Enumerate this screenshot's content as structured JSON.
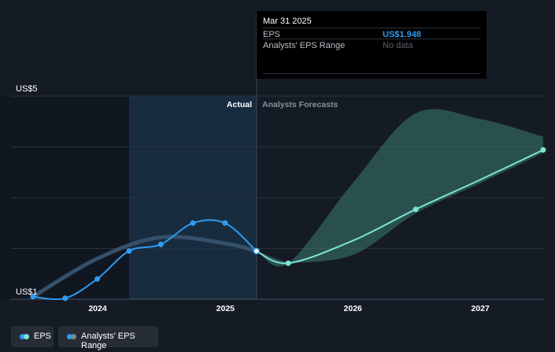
{
  "tooltip": {
    "title": "Mar 31 2025",
    "rows": [
      {
        "label": "EPS",
        "value": "US$1.948"
      },
      {
        "label": "Analysts' EPS Range",
        "value": "No data"
      }
    ]
  },
  "legend": [
    {
      "label": "EPS",
      "color": "#2f9bf2",
      "color2": "#7de4d6"
    },
    {
      "label": "Analysts' EPS Range",
      "color": "#2f9bf2",
      "color2": "#6e8c8c"
    }
  ],
  "chart_data": {
    "type": "line",
    "y_axis_labels": [
      "US$5",
      "US$1"
    ],
    "ylim": [
      1,
      5
    ],
    "x_ticks": [
      "2024",
      "2025",
      "2026",
      "2027"
    ],
    "section_labels": {
      "actual": "Actual",
      "forecast": "Analysts Forecasts"
    },
    "grid": true,
    "colors": {
      "actual": "#2f9bf2",
      "forecast": "#7de4d6",
      "range": "#3d7c70",
      "past_band": "#1b3a57"
    },
    "series": [
      {
        "name": "EPS",
        "x": [
          "2023-06-30",
          "2023-09-30",
          "2023-12-31",
          "2024-03-31",
          "2024-06-30",
          "2024-09-30",
          "2024-12-31",
          "2025-03-31"
        ],
        "values": [
          1.05,
          1.02,
          1.4,
          1.95,
          2.08,
          2.5,
          2.5,
          1.948
        ]
      },
      {
        "name": "EPS Forecast",
        "x": [
          "2025-03-31",
          "2025-06-30",
          "2025-12-31",
          "2026-06-30",
          "2026-12-31",
          "2027-06-30"
        ],
        "values": [
          1.948,
          1.71,
          2.15,
          2.77,
          3.35,
          3.94
        ]
      },
      {
        "name": "Analysts' EPS Range",
        "x": [
          "2023-06-30",
          "2023-12-31",
          "2024-06-30",
          "2024-12-31",
          "2025-03-31"
        ],
        "values": [
          1.05,
          1.8,
          2.22,
          2.1,
          1.948
        ]
      }
    ],
    "forecast_range": {
      "x": [
        "2025-06-30",
        "2025-12-31",
        "2026-06-30",
        "2026-12-31",
        "2027-06-30"
      ],
      "low": [
        1.71,
        1.87,
        2.69,
        3.28,
        3.88
      ],
      "high": [
        1.71,
        3.28,
        4.66,
        4.55,
        4.2
      ]
    },
    "highlight": {
      "from": "2024-03-31",
      "to": "2025-03-31"
    }
  }
}
